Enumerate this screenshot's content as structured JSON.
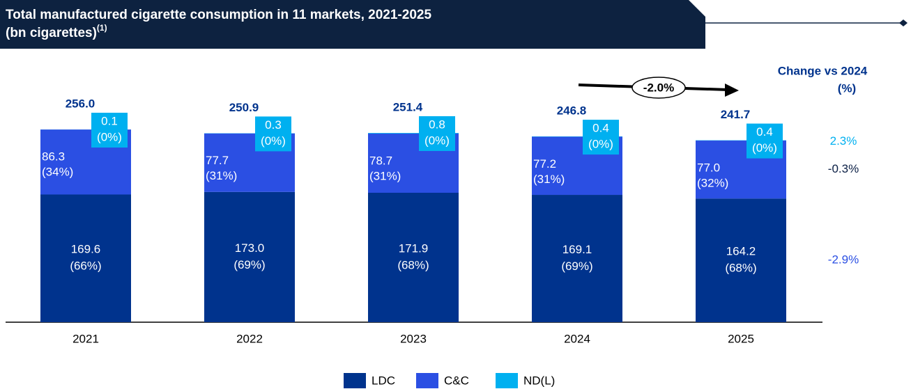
{
  "chart_data": {
    "type": "stacked_bar",
    "title": "Total manufactured cigarette consumption in 11 markets, 2021-2025",
    "subtitle": "(bn cigarettes)",
    "subtitle_note": "(1)",
    "categories": [
      "2021",
      "2022",
      "2023",
      "2024",
      "2025"
    ],
    "series": [
      {
        "name": "LDC",
        "color": "#00338d",
        "values": [
          169.6,
          173.0,
          171.9,
          169.1,
          164.2
        ],
        "value_labels": [
          "169.6",
          "173.0",
          "171.9",
          "169.1",
          "164.2"
        ],
        "shares": [
          "(66%)",
          "(69%)",
          "(68%)",
          "(69%)",
          "(68%)"
        ],
        "change": -2.9,
        "change_label": "-2.9%",
        "change_color": "#2b4fe3"
      },
      {
        "name": "C&C",
        "color": "#2b4fe3",
        "values": [
          86.3,
          77.7,
          78.7,
          77.2,
          77.0
        ],
        "value_labels": [
          "86.3",
          "77.7",
          "78.7",
          "77.2",
          "77.0"
        ],
        "shares": [
          "(34%)",
          "(31%)",
          "(31%)",
          "(31%)",
          "(32%)"
        ],
        "change": -0.3,
        "change_label": "-0.3%",
        "change_color": "#0b1f45"
      },
      {
        "name": "ND(L)",
        "color": "#00b0f0",
        "values": [
          0.1,
          0.3,
          0.8,
          0.4,
          0.4
        ],
        "value_labels": [
          "0.1",
          "0.3",
          "0.8",
          "0.4",
          "0.4"
        ],
        "shares": [
          "(0%)",
          "(0%)",
          "(0%)",
          "(0%)",
          "(0%)"
        ],
        "change": 2.3,
        "change_label": "2.3%",
        "change_color": "#00b0f0"
      }
    ],
    "totals": [
      256.0,
      250.9,
      251.4,
      246.8,
      241.7
    ],
    "total_labels": [
      "256.0",
      "250.9",
      "251.4",
      "246.8",
      "241.7"
    ],
    "change_title": [
      "Change vs 2024",
      "(%)"
    ],
    "annotation": "-2.0%"
  }
}
